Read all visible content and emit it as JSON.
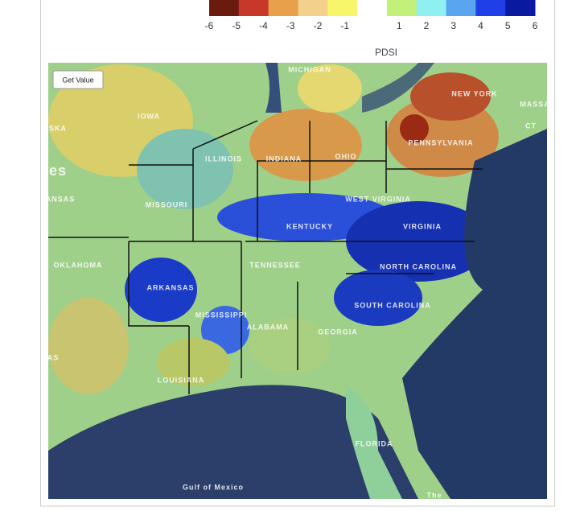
{
  "legend": {
    "title": "PDSI",
    "min": -6,
    "max": 6,
    "colors": [
      "#6b1a0e",
      "#c8382a",
      "#e8a04a",
      "#f3d08c",
      "#f7f56a",
      "#ffffff",
      "#c2f07a",
      "#8ef0f0",
      "#5aa6ee",
      "#1f3fe8",
      "#0a1aa0"
    ],
    "ticks": [
      -6,
      -5,
      -4,
      -3,
      -2,
      -1,
      1,
      2,
      3,
      4,
      5,
      6
    ]
  },
  "map": {
    "button": "Get Value",
    "labels": [
      "MICHIGAN",
      "NEW YORK",
      "MASSA",
      "IOWA",
      "CT",
      "ILLINOIS",
      "INDIANA",
      "OHIO",
      "PENNSYLVANIA",
      "SKA",
      "ANSAS",
      "es",
      "WEST VIRGINIA",
      "MISSOURI",
      "KENTUCKY",
      "VIRGINIA",
      "OKLAHOMA",
      "TENNESSEE",
      "NORTH CAROLINA",
      "ARKANSAS",
      "MISSISSIPPI",
      "ALABAMA",
      "GEORGIA",
      "SOUTH CAROLINA",
      "LOUISIANA",
      "FLORIDA",
      "AS",
      "Gulf of Mexico",
      "The"
    ]
  }
}
